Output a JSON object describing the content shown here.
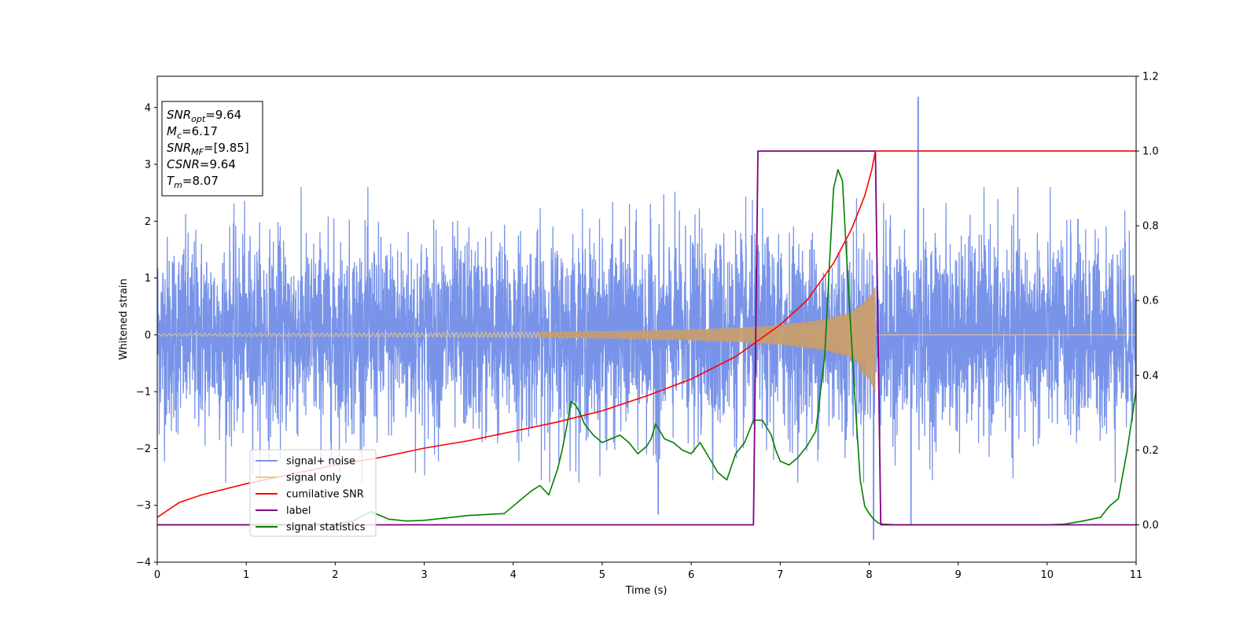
{
  "chart_data": {
    "type": "line",
    "xlabel": "Time (s)",
    "ylabel": "Whitened strain",
    "xlim": [
      0,
      11
    ],
    "ylim_left": [
      -4,
      4.55
    ],
    "ylim_right": [
      -0.1,
      1.2
    ],
    "x_ticks": [
      0,
      1,
      2,
      3,
      4,
      5,
      6,
      7,
      8,
      9,
      10,
      11
    ],
    "y_ticks_left": [
      -4,
      -3,
      -2,
      -1,
      0,
      1,
      2,
      3,
      4
    ],
    "y_ticks_right": [
      "0.0",
      "0.2",
      "0.4",
      "0.6",
      "0.8",
      "1.0",
      "1.2"
    ],
    "grid": false,
    "legend_position": "lower-left",
    "colors": {
      "signal_noise": "#7893e8",
      "signal_only": "#f5c97a",
      "cumulative_snr": "#ff0000",
      "label": "#800080",
      "signal_statistics": "#008000"
    },
    "series": [
      {
        "name": "signal+ noise",
        "axis": "left",
        "description_values": "dense whitened noise, roughly within [-2.5, 2.5] with spikes to 4.2 near t=8.55 and -3.6 near t=8.05"
      },
      {
        "name": "signal only",
        "axis": "left",
        "envelope_x": [
          0,
          1,
          2,
          3,
          4,
          5,
          6,
          6.5,
          7,
          7.5,
          7.8,
          8.0,
          8.07,
          8.1,
          11
        ],
        "envelope_y": [
          0.02,
          0.025,
          0.03,
          0.035,
          0.045,
          0.06,
          0.09,
          0.12,
          0.17,
          0.27,
          0.4,
          0.65,
          0.85,
          0,
          0
        ]
      },
      {
        "name": "cumilative SNR",
        "axis": "right",
        "x": [
          0,
          0.25,
          0.5,
          1,
          1.5,
          2,
          2.5,
          3,
          3.5,
          4,
          4.5,
          5,
          5.5,
          6,
          6.5,
          7,
          7.3,
          7.6,
          7.8,
          7.95,
          8.03,
          8.07,
          8.1,
          11
        ],
        "y": [
          0.02,
          0.06,
          0.08,
          0.11,
          0.135,
          0.16,
          0.18,
          0.205,
          0.225,
          0.25,
          0.275,
          0.305,
          0.345,
          0.39,
          0.45,
          0.535,
          0.6,
          0.7,
          0.79,
          0.88,
          0.95,
          1.0,
          1.0,
          1.0
        ]
      },
      {
        "name": "label",
        "axis": "right",
        "x": [
          0,
          6.7,
          6.75,
          8.07,
          8.13,
          11
        ],
        "y": [
          0,
          0,
          1,
          1,
          0,
          0
        ]
      },
      {
        "name": "signal statistics",
        "axis": "right",
        "x": [
          0,
          1,
          2,
          2.2,
          2.4,
          2.6,
          2.8,
          3,
          3.5,
          3.9,
          4.0,
          4.1,
          4.2,
          4.3,
          4.4,
          4.5,
          4.55,
          4.6,
          4.65,
          4.7,
          4.75,
          4.8,
          4.9,
          5.0,
          5.1,
          5.2,
          5.3,
          5.4,
          5.5,
          5.55,
          5.6,
          5.7,
          5.8,
          5.9,
          6.0,
          6.1,
          6.2,
          6.3,
          6.4,
          6.5,
          6.6,
          6.7,
          6.8,
          6.85,
          6.9,
          6.95,
          7.0,
          7.1,
          7.2,
          7.3,
          7.4,
          7.5,
          7.55,
          7.6,
          7.65,
          7.7,
          7.75,
          7.8,
          7.85,
          7.9,
          7.95,
          8.0,
          8.05,
          8.1,
          8.15,
          8.3,
          9,
          10,
          10.2,
          10.4,
          10.6,
          10.7,
          10.8,
          10.9,
          11.0
        ],
        "y": [
          0.0,
          0.0,
          0.002,
          0.01,
          0.035,
          0.015,
          0.01,
          0.012,
          0.025,
          0.03,
          0.05,
          0.07,
          0.09,
          0.105,
          0.08,
          0.15,
          0.2,
          0.26,
          0.33,
          0.32,
          0.3,
          0.27,
          0.24,
          0.22,
          0.23,
          0.24,
          0.22,
          0.19,
          0.21,
          0.23,
          0.27,
          0.23,
          0.22,
          0.2,
          0.19,
          0.22,
          0.18,
          0.14,
          0.12,
          0.19,
          0.22,
          0.28,
          0.28,
          0.26,
          0.24,
          0.2,
          0.17,
          0.16,
          0.18,
          0.21,
          0.25,
          0.45,
          0.68,
          0.9,
          0.95,
          0.92,
          0.7,
          0.5,
          0.3,
          0.12,
          0.05,
          0.03,
          0.015,
          0.005,
          0.002,
          0.0,
          0.0,
          0.0,
          0.002,
          0.01,
          0.02,
          0.05,
          0.07,
          0.2,
          0.36
        ]
      }
    ],
    "annotation": {
      "lines": [
        {
          "label": "SNR",
          "sub": "opt",
          "value": "=9.64"
        },
        {
          "label": "M",
          "sub": "c",
          "value": "=6.17"
        },
        {
          "label": "SNR",
          "sub": "MF",
          "value": "=[9.85]"
        },
        {
          "label": "CSNR",
          "sub": "",
          "value": "=9.64"
        },
        {
          "label": "T",
          "sub": "m",
          "value": "=8.07"
        }
      ]
    }
  }
}
